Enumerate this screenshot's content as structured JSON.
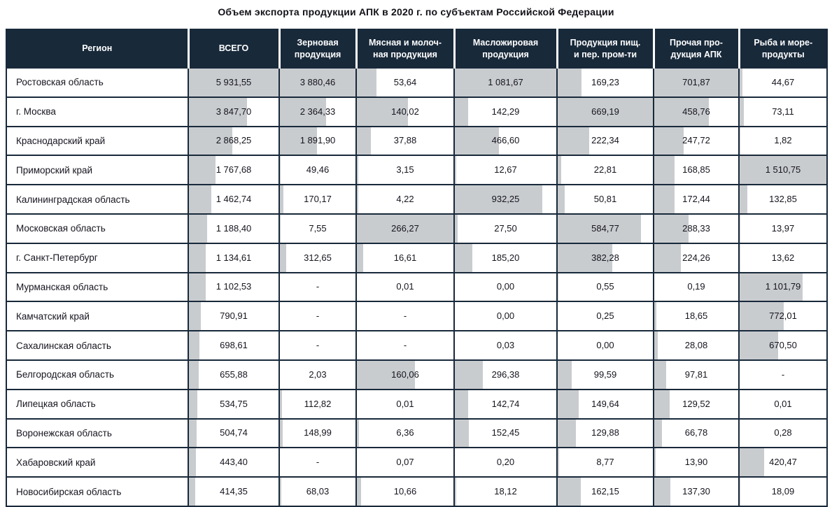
{
  "title": "Объем экспорта продукции АПК в 2020 г. по субъектам Российской Федерации",
  "colors": {
    "header_bg": "#18293a",
    "header_text": "#ffffff",
    "bar": "#c9cccf",
    "border": "#18293a",
    "text": "#15151f",
    "background": "#ffffff"
  },
  "chart_data": {
    "type": "table",
    "title": "Объем экспорта продукции АПК в 2020 г. по субъектам Российской Федерации",
    "bar_model": "each numeric cell has a left-anchored gray bar, width = value / column_max",
    "column_max": {
      "ВСЕГО": 5931.55,
      "Зерновая продукция": 3880.46,
      "Мясная и молочная продукция": 266.27,
      "Масложировая продукция": 1081.67,
      "Продукция пищ. и пер. пром-ти": 669.19,
      "Прочая продукция АПК": 701.87,
      "Рыба и морепродукты": 1510.75
    }
  },
  "table": {
    "columns": [
      {
        "label": "Регион",
        "max": null
      },
      {
        "label": "ВСЕГО",
        "max": 5931.55
      },
      {
        "label": "Зерновая\nпродукция",
        "max": 3880.46
      },
      {
        "label": "Мясная и молоч-\nная продукция",
        "max": 266.27
      },
      {
        "label": "Масложировая\nпродукция",
        "max": 1081.67
      },
      {
        "label": "Продукция пищ.\nи пер. пром-ти",
        "max": 669.19
      },
      {
        "label": "Прочая про-\nдукция АПК",
        "max": 701.87
      },
      {
        "label": "Рыба и море-\nпродукты",
        "max": 1510.75
      }
    ],
    "rows": [
      {
        "region": "Ростовская область",
        "display": [
          "5 931,55",
          "3 880,46",
          "53,64",
          "1 081,67",
          "169,23",
          "701,87",
          "44,67"
        ],
        "values": [
          5931.55,
          3880.46,
          53.64,
          1081.67,
          169.23,
          701.87,
          44.67
        ]
      },
      {
        "region": "г. Москва",
        "display": [
          "3 847,70",
          "2 364,33",
          "140,02",
          "142,29",
          "669,19",
          "458,76",
          "73,11"
        ],
        "values": [
          3847.7,
          2364.33,
          140.02,
          142.29,
          669.19,
          458.76,
          73.11
        ]
      },
      {
        "region": "Краснодарский край",
        "display": [
          "2 868,25",
          "1 891,90",
          "37,88",
          "466,60",
          "222,34",
          "247,72",
          "1,82"
        ],
        "values": [
          2868.25,
          1891.9,
          37.88,
          466.6,
          222.34,
          247.72,
          1.82
        ]
      },
      {
        "region": "Приморский край",
        "display": [
          "1 767,68",
          "49,46",
          "3,15",
          "12,67",
          "22,81",
          "168,85",
          "1 510,75"
        ],
        "values": [
          1767.68,
          49.46,
          3.15,
          12.67,
          22.81,
          168.85,
          1510.75
        ]
      },
      {
        "region": "Калининградская область",
        "display": [
          "1 462,74",
          "170,17",
          "4,22",
          "932,25",
          "50,81",
          "172,44",
          "132,85"
        ],
        "values": [
          1462.74,
          170.17,
          4.22,
          932.25,
          50.81,
          172.44,
          132.85
        ]
      },
      {
        "region": "Московская область",
        "display": [
          "1 188,40",
          "7,55",
          "266,27",
          "27,50",
          "584,77",
          "288,33",
          "13,97"
        ],
        "values": [
          1188.4,
          7.55,
          266.27,
          27.5,
          584.77,
          288.33,
          13.97
        ]
      },
      {
        "region": "г. Санкт-Петербург",
        "display": [
          "1 134,61",
          "312,65",
          "16,61",
          "185,20",
          "382,28",
          "224,26",
          "13,62"
        ],
        "values": [
          1134.61,
          312.65,
          16.61,
          185.2,
          382.28,
          224.26,
          13.62
        ]
      },
      {
        "region": "Мурманская область",
        "display": [
          "1 102,53",
          "-",
          "0,01",
          "0,00",
          "0,55",
          "0,19",
          "1 101,79"
        ],
        "values": [
          1102.53,
          null,
          0.01,
          0.0,
          0.55,
          0.19,
          1101.79
        ]
      },
      {
        "region": "Камчатский край",
        "display": [
          "790,91",
          "-",
          "-",
          "0,00",
          "0,25",
          "18,65",
          "772,01"
        ],
        "values": [
          790.91,
          null,
          null,
          0.0,
          0.25,
          18.65,
          772.01
        ]
      },
      {
        "region": "Сахалинская область",
        "display": [
          "698,61",
          "-",
          "-",
          "0,03",
          "0,00",
          "28,08",
          "670,50"
        ],
        "values": [
          698.61,
          null,
          null,
          0.03,
          0.0,
          28.08,
          670.5
        ]
      },
      {
        "region": "Белгородская область",
        "display": [
          "655,88",
          "2,03",
          "160,06",
          "296,38",
          "99,59",
          "97,81",
          "-"
        ],
        "values": [
          655.88,
          2.03,
          160.06,
          296.38,
          99.59,
          97.81,
          null
        ]
      },
      {
        "region": "Липецкая область",
        "display": [
          "534,75",
          "112,82",
          "0,01",
          "142,74",
          "149,64",
          "129,52",
          "0,01"
        ],
        "values": [
          534.75,
          112.82,
          0.01,
          142.74,
          149.64,
          129.52,
          0.01
        ]
      },
      {
        "region": "Воронежская область",
        "display": [
          "504,74",
          "148,99",
          "6,36",
          "152,45",
          "129,88",
          "66,78",
          "0,28"
        ],
        "values": [
          504.74,
          148.99,
          6.36,
          152.45,
          129.88,
          66.78,
          0.28
        ]
      },
      {
        "region": "Хабаровский край",
        "display": [
          "443,40",
          "-",
          "0,07",
          "0,20",
          "8,77",
          "13,90",
          "420,47"
        ],
        "values": [
          443.4,
          null,
          0.07,
          0.2,
          8.77,
          13.9,
          420.47
        ]
      },
      {
        "region": "Новосибирская область",
        "display": [
          "414,35",
          "68,03",
          "10,66",
          "18,12",
          "162,15",
          "137,30",
          "18,09"
        ],
        "values": [
          414.35,
          68.03,
          10.66,
          18.12,
          162.15,
          137.3,
          18.09
        ]
      }
    ]
  }
}
